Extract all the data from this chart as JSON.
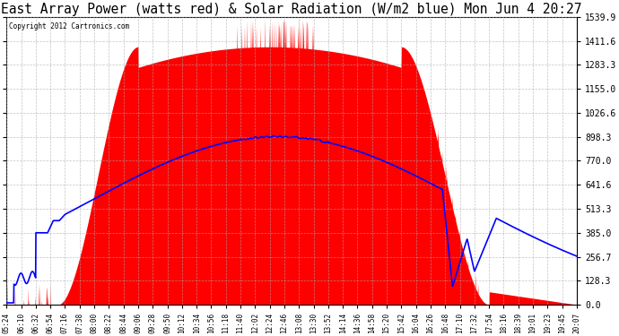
{
  "title": "East Array Power (watts red) & Solar Radiation (W/m2 blue) Mon Jun 4 20:27",
  "copyright_text": "Copyright 2012 Cartronics.com",
  "y_max": 1539.9,
  "y_min": 0.0,
  "y_ticks": [
    0.0,
    128.3,
    256.7,
    385.0,
    513.3,
    641.6,
    770.0,
    898.3,
    1026.6,
    1155.0,
    1283.3,
    1411.6,
    1539.9
  ],
  "x_labels": [
    "05:24",
    "06:10",
    "06:32",
    "06:54",
    "07:16",
    "07:38",
    "08:00",
    "08:22",
    "08:44",
    "09:06",
    "09:28",
    "09:50",
    "10:12",
    "10:34",
    "10:56",
    "11:18",
    "11:40",
    "12:02",
    "12:24",
    "12:46",
    "13:08",
    "13:30",
    "13:52",
    "14:14",
    "14:36",
    "14:58",
    "15:20",
    "15:42",
    "16:04",
    "16:26",
    "16:48",
    "17:10",
    "17:32",
    "17:54",
    "18:16",
    "18:39",
    "19:01",
    "19:23",
    "19:45",
    "20:07"
  ],
  "bg_color": "#ffffff",
  "grid_color": "#aaaaaa",
  "red_color": "#ff0000",
  "blue_color": "#0000ff",
  "title_fontsize": 10.5
}
